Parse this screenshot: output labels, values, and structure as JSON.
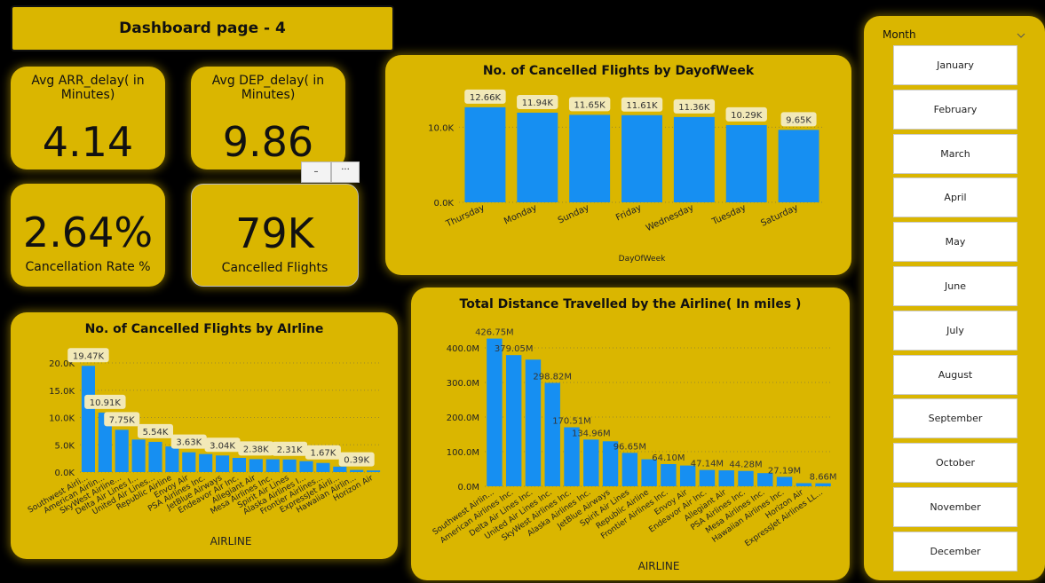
{
  "header": {
    "title": "Dashboard page - 4"
  },
  "kpis": {
    "arr": {
      "label": "Avg ARR_delay( in Minutes)",
      "value": "4.14"
    },
    "dep": {
      "label": "Avg DEP_delay( in Minutes)",
      "value": "9.86"
    },
    "rate": {
      "label": "Cancellation Rate %",
      "value": "2.64%"
    },
    "cancelled": {
      "label": "Cancelled Flights",
      "value": "79K"
    }
  },
  "visual_header": {
    "minimize": "–",
    "more": "···"
  },
  "colors": {
    "panel": "#dab600",
    "bar": "#168ff2",
    "background": "#000000"
  },
  "charts": {
    "dow": {
      "title": "No. of Cancelled Flights by DayofWeek",
      "ylabels": [
        "10.0K",
        "0.0K"
      ],
      "xaxis": "DayOfWeek"
    },
    "airline": {
      "title": "No. of Cancelled Flights by AIrline",
      "ylabels": [
        "20.0K",
        "15.0K",
        "10.0K",
        "5.0K",
        "0.0K"
      ],
      "xaxis": "AIRLINE"
    },
    "distance": {
      "title": "Total Distance Travelled by the Airline( In miles )",
      "ylabels": [
        "400.0M",
        "300.0M",
        "200.0M",
        "100.0M",
        "0.0M"
      ],
      "xaxis": "AIRLINE"
    }
  },
  "slicer": {
    "title": "Month",
    "icon": "chevron-down-icon",
    "months": [
      "January",
      "February",
      "March",
      "April",
      "May",
      "June",
      "July",
      "August",
      "September",
      "October",
      "November",
      "December"
    ]
  },
  "chart_data": [
    {
      "type": "bar",
      "title": "No. of Cancelled Flights by DayofWeek",
      "xlabel": "DayOfWeek",
      "ylabel": "",
      "ylim": [
        0,
        13000
      ],
      "categories": [
        "Thursday",
        "Monday",
        "Sunday",
        "Friday",
        "Wednesday",
        "Tuesday",
        "Saturday"
      ],
      "values": [
        12660,
        11940,
        11650,
        11610,
        11360,
        10290,
        9650
      ],
      "labels": [
        "12.66K",
        "11.94K",
        "11.65K",
        "11.61K",
        "11.36K",
        "10.29K",
        "9.65K"
      ]
    },
    {
      "type": "bar",
      "title": "No. of Cancelled Flights by AIrline",
      "xlabel": "AIRLINE",
      "ylabel": "",
      "ylim": [
        0,
        20000
      ],
      "categories": [
        "Southwest Airli...",
        "American Airlin...",
        "SkyWest Airline...",
        "Delta Air Lines I...",
        "United Air Lines...",
        "Republic Airline",
        "Envoy Air",
        "PSA Airlines Inc.",
        "JetBlue Airways",
        "Endeavor Air Inc.",
        "Allegiant Air",
        "Mesa Airlines Inc.",
        "Spirit Air Lines",
        "Alaska Airlines I...",
        "Frontier Airlines...",
        "ExpressJet Airli...",
        "Hawaiian Airlin...",
        "Horizon Air"
      ],
      "values": [
        19470,
        10910,
        7750,
        5960,
        5540,
        4700,
        3630,
        3300,
        3040,
        2600,
        2380,
        2350,
        2310,
        2000,
        1670,
        1000,
        390,
        300
      ],
      "labels": [
        "19.47K",
        "10.91K",
        "7.75K",
        "",
        "5.54K",
        "",
        "3.63K",
        "",
        "3.04K",
        "",
        "2.38K",
        "",
        "2.31K",
        "",
        "1.67K",
        "",
        "0.39K",
        ""
      ]
    },
    {
      "type": "bar",
      "title": "Total Distance Travelled by the Airline( In miles )",
      "xlabel": "AIRLINE",
      "ylabel": "",
      "ylim": [
        0,
        430000000
      ],
      "categories": [
        "Southwest Airlin...",
        "American Airlines Inc.",
        "Delta Air Lines Inc.",
        "United Air Lines Inc.",
        "SkyWest Airlines Inc.",
        "Alaska Airlines Inc.",
        "JetBlue Airways",
        "Spirit Air Lines",
        "Republic Airline",
        "Frontier Airlines Inc.",
        "Envoy Air",
        "Endeavor Air Inc.",
        "Allegiant Air",
        "PSA Airlines Inc.",
        "Mesa Airlines Inc.",
        "Hawaiian Airlines Inc.",
        "Horizon Air",
        "ExpressJet Airlines LL..."
      ],
      "values": [
        426750000,
        379050000,
        366000000,
        298820000,
        170510000,
        134960000,
        130000000,
        96650000,
        78000000,
        64100000,
        60000000,
        47140000,
        46000000,
        44280000,
        38000000,
        27190000,
        9000000,
        8660000
      ],
      "labels": [
        "426.75M",
        "379.05M",
        "",
        "298.82M",
        "170.51M",
        "134.96M",
        "",
        "96.65M",
        "",
        "64.10M",
        "",
        "47.14M",
        "",
        "44.28M",
        "",
        "27.19M",
        "",
        "8.66M"
      ]
    }
  ]
}
